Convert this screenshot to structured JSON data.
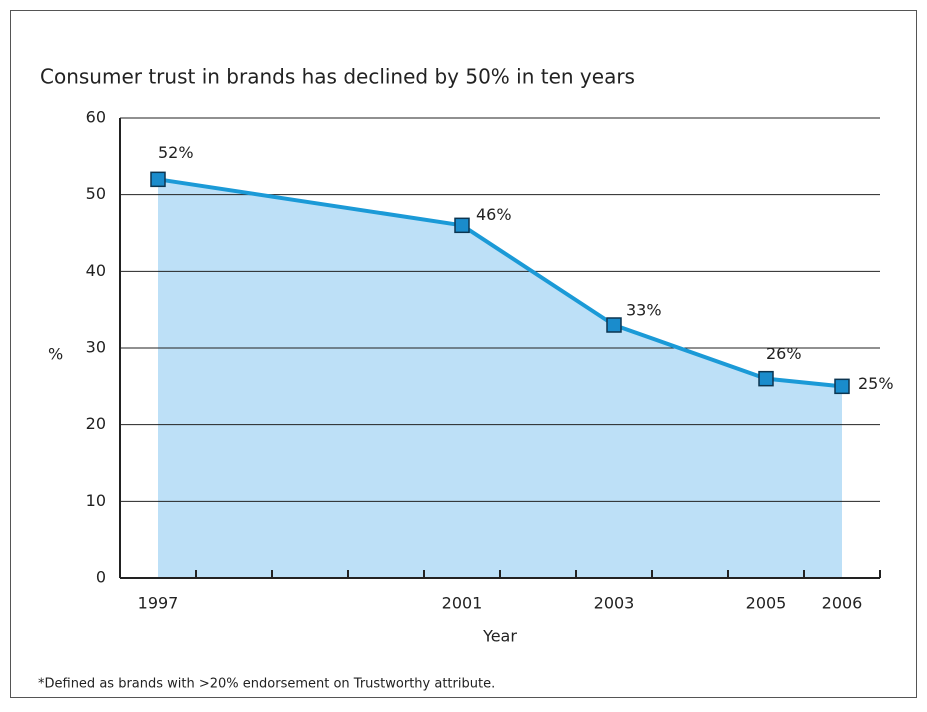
{
  "chart_data": {
    "type": "line",
    "title": "Consumer trust in brands has declined by 50% in ten years",
    "x_label": "Year",
    "y_label": "%",
    "x": [
      1997,
      2001,
      2003,
      2005,
      2006
    ],
    "series": [
      {
        "color": "#1b9ad7",
        "values": [
          52,
          46,
          33,
          26,
          25
        ],
        "value_labels": [
          "52%",
          "46%",
          "33%",
          "26%",
          "25%"
        ]
      }
    ],
    "area_color": "#bde0f7",
    "xlim": [
      1996.5,
      2006.5
    ],
    "xticks": [
      1997,
      2001,
      2003,
      2005,
      2006
    ],
    "ylim": [
      0,
      60
    ],
    "yticks": [
      0,
      10,
      20,
      30,
      40,
      50,
      60
    ],
    "grid": true,
    "footnote": "*Defined as brands with >20% endorsement on Trustworthy attribute."
  }
}
